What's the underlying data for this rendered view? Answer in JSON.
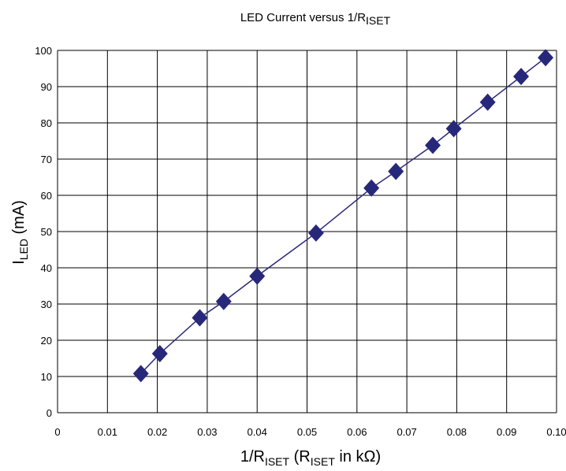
{
  "chart_data": {
    "type": "scatter",
    "title": {
      "prefix": "LED Current versus 1/",
      "r": "R",
      "sub": "ISET"
    },
    "xlabel": {
      "prefix": "1/R",
      "sub1": "ISET",
      "mid": " (R",
      "sub2": "ISET",
      "suffix": " in kΩ)"
    },
    "ylabel": {
      "main": "I",
      "sub": "LED",
      "suffix": " (mA)"
    },
    "xlim": [
      0,
      0.1
    ],
    "ylim": [
      0,
      100
    ],
    "x_ticks": [
      "0",
      "0.01",
      "0.02",
      "0.03",
      "0.04",
      "0.05",
      "0.06",
      "0.07",
      "0.08",
      "0.09",
      "0.10"
    ],
    "y_ticks": [
      "0",
      "10",
      "20",
      "30",
      "40",
      "50",
      "60",
      "70",
      "80",
      "90",
      "100"
    ],
    "grid": true,
    "marker": "diamond",
    "colors": {
      "series": "#28287a",
      "grid": "#000000"
    },
    "series": [
      {
        "x": [
          0.0167,
          0.0205,
          0.0285,
          0.0333,
          0.04,
          0.0518,
          0.0629,
          0.0678,
          0.0752,
          0.0794,
          0.0862,
          0.0929,
          0.0978
        ],
        "y": [
          10.8,
          16.3,
          26.2,
          30.7,
          37.7,
          49.6,
          62.0,
          66.6,
          73.8,
          78.4,
          85.7,
          92.8,
          98.0
        ]
      }
    ]
  }
}
